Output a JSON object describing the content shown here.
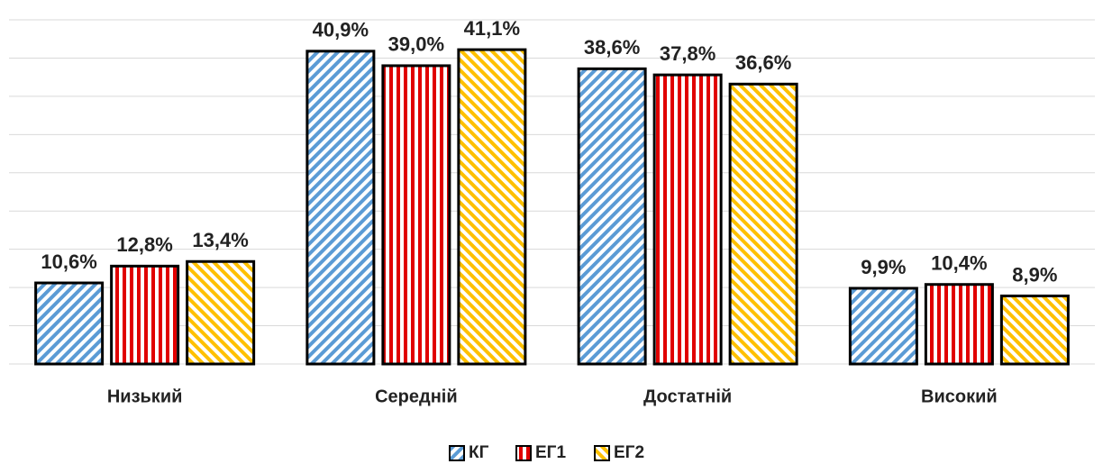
{
  "chart_data": {
    "type": "bar",
    "categories": [
      "Низький",
      "Середній",
      "Достатній",
      "Високий"
    ],
    "series": [
      {
        "name": "КГ",
        "color": "#5b9bd5",
        "hatch": "diagonal-up",
        "values": [
          10.6,
          40.9,
          38.6,
          9.9
        ],
        "value_labels": [
          "10,6%",
          "40,9%",
          "38,6%",
          "9,9%"
        ]
      },
      {
        "name": "ЕГ1",
        "color": "#e00000",
        "hatch": "vertical",
        "values": [
          12.8,
          39.0,
          37.8,
          10.4
        ],
        "value_labels": [
          "12,8%",
          "39,0%",
          "37,8%",
          "10,4%"
        ]
      },
      {
        "name": "ЕГ2",
        "color": "#ffc000",
        "hatch": "diagonal-down",
        "values": [
          13.4,
          41.1,
          36.6,
          8.9
        ],
        "value_labels": [
          "13,4%",
          "41,1%",
          "36,6%",
          "8,9%"
        ]
      }
    ],
    "ylim": [
      0,
      45
    ],
    "yticks": [
      0,
      5,
      10,
      15,
      20,
      25,
      30,
      35,
      40,
      45
    ],
    "grid": true,
    "legend": "bottom"
  }
}
